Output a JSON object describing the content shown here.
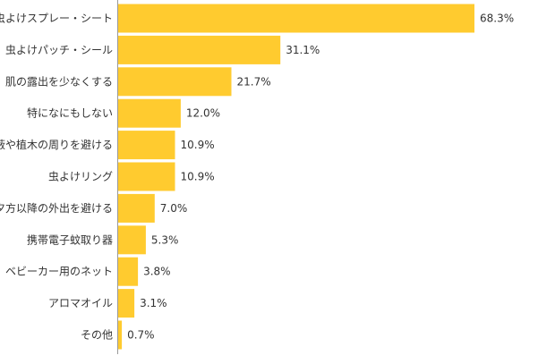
{
  "chart_data": {
    "type": "bar",
    "orientation": "horizontal",
    "categories": [
      "虫よけスプレー・シート",
      "虫よけパッチ・シール",
      "肌の露出を少なくする",
      "特になにもしない",
      "藪や植木の周りを避ける",
      "虫よけリング",
      "夕方以降の外出を避ける",
      "携帯電子蚊取り器",
      "ベビーカー用のネット",
      "アロマオイル",
      "その他"
    ],
    "values": [
      68.3,
      31.1,
      21.7,
      12.0,
      10.9,
      10.9,
      7.0,
      5.3,
      3.8,
      3.1,
      0.7
    ],
    "value_labels": [
      "68.3%",
      "31.1%",
      "21.7%",
      "12.0%",
      "10.9%",
      "10.9%",
      "7.0%",
      "5.3%",
      "3.8%",
      "3.1%",
      "0.7%"
    ],
    "xlim": [
      0,
      68.3
    ],
    "grid": false,
    "bar_color": "#ffcb2f",
    "axis_color": "#999999"
  }
}
